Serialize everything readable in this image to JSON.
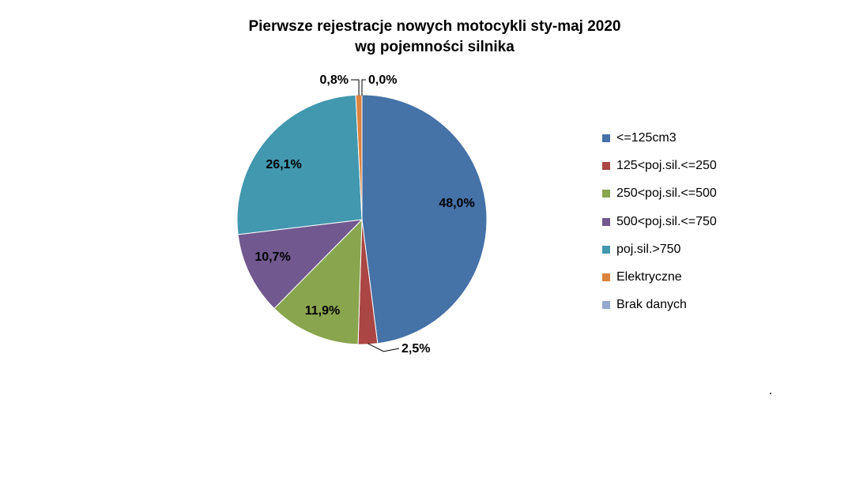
{
  "chart_data": {
    "type": "pie",
    "title_line1": "Pierwsze rejestracje nowych motocykli sty-maj 2020",
    "title_line2": "wg pojemności silnika",
    "legend_position": "right",
    "slices": [
      {
        "name": "<=125cm3",
        "value": 48.0,
        "label": "48,0%",
        "color": "#4572A7"
      },
      {
        "name": "125<poj.sil.<=250",
        "value": 2.5,
        "label": "2,5%",
        "color": "#AA4643"
      },
      {
        "name": "250<poj.sil.<=500",
        "value": 11.9,
        "label": "11,9%",
        "color": "#89A54E"
      },
      {
        "name": "500<poj.sil.<=750",
        "value": 10.7,
        "label": "10,7%",
        "color": "#71588F"
      },
      {
        "name": "poj.sil.>750",
        "value": 26.1,
        "label": "26,1%",
        "color": "#4198AF"
      },
      {
        "name": "Elektryczne",
        "value": 0.8,
        "label": "0,8%",
        "color": "#DB843D"
      },
      {
        "name": "Brak danych",
        "value": 0.0,
        "label": "0,0%",
        "color": "#93A9CF"
      }
    ]
  }
}
